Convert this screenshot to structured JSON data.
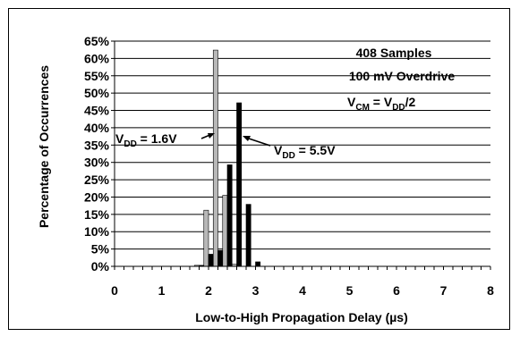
{
  "chart_data": {
    "type": "bar",
    "xlabel": "Low-to-High Propagation Delay (µs)",
    "ylabel": "Percentage of Occurrences",
    "xlim": [
      0,
      8
    ],
    "ylim": [
      0,
      65
    ],
    "x_ticks": [
      "0",
      "1",
      "2",
      "3",
      "4",
      "5",
      "6",
      "7",
      "8"
    ],
    "y_ticks": [
      "0%",
      "5%",
      "10%",
      "15%",
      "20%",
      "25%",
      "30%",
      "35%",
      "40%",
      "45%",
      "50%",
      "55%",
      "60%",
      "65%"
    ],
    "grid": "horizontal",
    "bin_centers": [
      1.8,
      2.0,
      2.2,
      2.4,
      2.6,
      2.8,
      3.0
    ],
    "series": [
      {
        "name": "V_DD = 1.6V",
        "color": "#b8b8b8",
        "values": [
          0.3,
          16.2,
          62.4,
          20.5,
          0.6,
          0,
          0
        ]
      },
      {
        "name": "V_DD = 5.5V",
        "color": "#000000",
        "values": [
          0.3,
          3.5,
          4.6,
          29.3,
          47.2,
          17.9,
          1.3
        ]
      }
    ],
    "annotations": {
      "samples": "408 Samples",
      "overdrive": "100 mV Overdrive",
      "vcm": {
        "prefix": "V",
        "sub1": "CM",
        "mid": " = V",
        "sub2": "DD",
        "suffix": "/2"
      },
      "vdd_low": {
        "prefix": "V",
        "sub": "DD",
        "suffix": " = 1.6V"
      },
      "vdd_high": {
        "prefix": "V",
        "sub": "DD",
        "suffix": " = 5.5V"
      }
    }
  }
}
